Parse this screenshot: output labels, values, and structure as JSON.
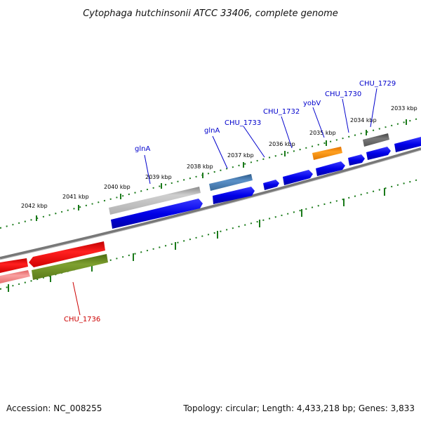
{
  "title": "Cytophaga hutchinsonii ATCC 33406, complete genome",
  "footer": {
    "accession": "Accession: NC_008255",
    "summary": "Topology: circular; Length: 4,433,218 bp; Genes: 3,833"
  },
  "ticks": [
    "2042 kbp",
    "2041 kbp",
    "2040 kbp",
    "2039 kbp",
    "2038 kbp",
    "2037 kbp",
    "2036 kbp",
    "2035 kbp",
    "2034 kbp",
    "2033 kbp"
  ],
  "gene_labels": [
    "glnA",
    "glnA",
    "CHU_1733",
    "CHU_1732",
    "yobV",
    "CHU_1730",
    "CHU_1729",
    "CHU_1736"
  ],
  "colors": {
    "blue": "#0000e0",
    "steel_blue": "#4a7fb5",
    "gray": "#b8b8b8",
    "dark_gray": "#666666",
    "orange": "#ff8c00",
    "red": "#ee0000",
    "pink": "#f07a7a",
    "olive": "#6b8e23",
    "tick_green": "#1a7a1a",
    "label_blue": "#0000cc",
    "label_red": "#cc0000"
  }
}
